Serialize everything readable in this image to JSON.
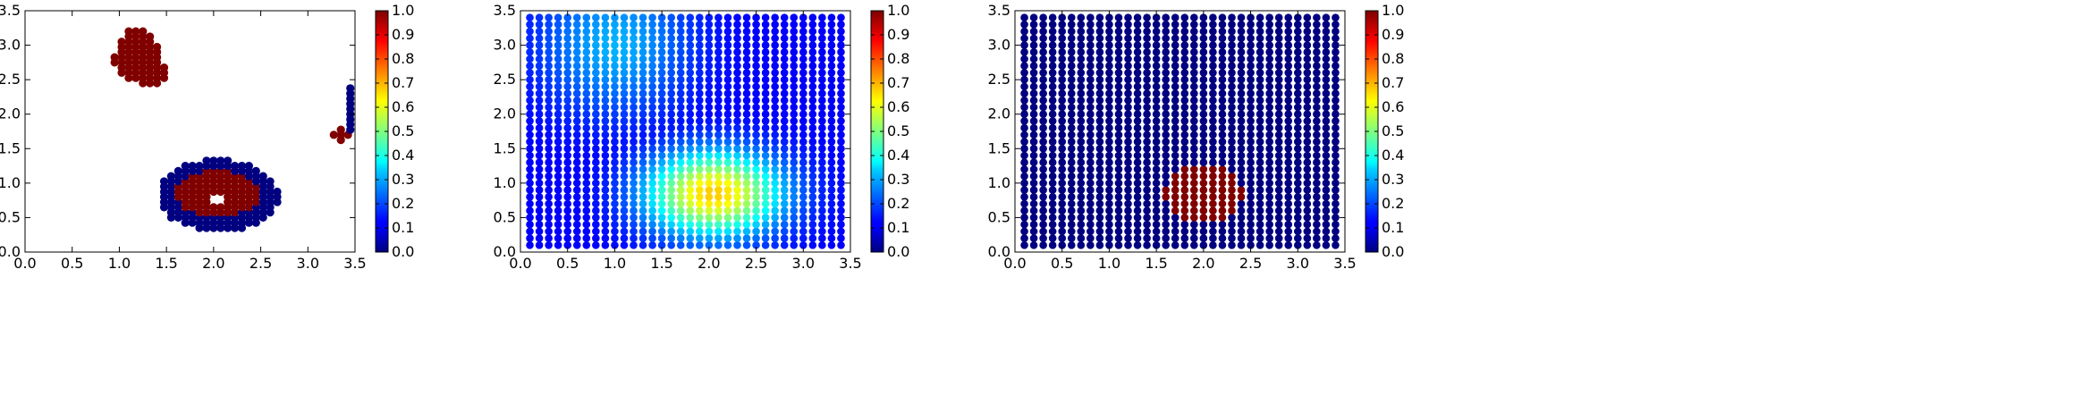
{
  "chart_data": [
    {
      "type": "scatter",
      "title": "",
      "xlabel": "",
      "ylabel": "",
      "xlim": [
        0,
        3.5
      ],
      "ylim": [
        0,
        3.5
      ],
      "xticks": [
        "0.0",
        "0.5",
        "1.0",
        "1.5",
        "2.0",
        "2.5",
        "3.0",
        "3.5"
      ],
      "yticks": [
        "0.0",
        "0.5",
        "1.0",
        "1.5",
        "2.0",
        "2.5",
        "3.0",
        "3.5"
      ],
      "colormap": "jet",
      "colorbar": {
        "range": [
          0,
          1
        ],
        "ticks": [
          "0.0",
          "0.1",
          "0.2",
          "0.3",
          "0.4",
          "0.5",
          "0.6",
          "0.7",
          "0.8",
          "0.9",
          "1.0"
        ]
      },
      "grid": false,
      "field": "clusters",
      "regions": [
        {
          "name": "upper-left blob",
          "value": 1.0,
          "center": [
            1.2,
            2.85
          ]
        },
        {
          "name": "right strip",
          "value": 0.0,
          "center": [
            3.45,
            2.05
          ]
        },
        {
          "name": "right small blob",
          "value": 1.0,
          "center": [
            3.35,
            1.7
          ]
        },
        {
          "name": "lower ring outer",
          "value": 0.0,
          "center": [
            2.05,
            0.82
          ]
        },
        {
          "name": "lower ring inner",
          "value": 1.0,
          "center": [
            2.05,
            0.85
          ]
        }
      ]
    },
    {
      "type": "scatter",
      "title": "",
      "xlabel": "",
      "ylabel": "",
      "xlim": [
        0,
        3.5
      ],
      "ylim": [
        0,
        3.5
      ],
      "xticks": [
        "0.0",
        "0.5",
        "1.0",
        "1.5",
        "2.0",
        "2.5",
        "3.0",
        "3.5"
      ],
      "yticks": [
        "0.0",
        "0.5",
        "1.0",
        "1.5",
        "2.0",
        "2.5",
        "3.0",
        "3.5"
      ],
      "colormap": "jet",
      "colorbar": {
        "range": [
          0,
          1
        ],
        "ticks": [
          "0.0",
          "0.1",
          "0.2",
          "0.3",
          "0.4",
          "0.5",
          "0.6",
          "0.7",
          "0.8",
          "0.9",
          "1.0"
        ]
      },
      "grid": false,
      "field": "smooth",
      "points": {
        "x_start": 0.1,
        "x_end": 3.4,
        "y_start": 0.1,
        "y_end": 3.4,
        "step": 0.1
      },
      "peaks": [
        {
          "center": [
            2.05,
            0.85
          ],
          "value": 0.68
        },
        {
          "center": [
            1.0,
            3.0
          ],
          "value": 0.22
        }
      ]
    },
    {
      "type": "scatter",
      "title": "",
      "xlabel": "",
      "ylabel": "",
      "xlim": [
        0,
        3.5
      ],
      "ylim": [
        0,
        3.5
      ],
      "xticks": [
        "0.0",
        "0.5",
        "1.0",
        "1.5",
        "2.0",
        "2.5",
        "3.0",
        "3.5"
      ],
      "yticks": [
        "0.0",
        "0.5",
        "1.0",
        "1.5",
        "2.0",
        "2.5",
        "3.0",
        "3.5"
      ],
      "colormap": "jet",
      "colorbar": {
        "range": [
          0,
          1
        ],
        "ticks": [
          "0.0",
          "0.1",
          "0.2",
          "0.3",
          "0.4",
          "0.5",
          "0.6",
          "0.7",
          "0.8",
          "0.9",
          "1.0"
        ]
      },
      "grid": false,
      "field": "disk",
      "points": {
        "x_start": 0.1,
        "x_end": 3.4,
        "y_start": 0.1,
        "y_end": 3.4,
        "step": 0.1
      },
      "disk": {
        "center": [
          2.0,
          0.85
        ],
        "radius": 0.42,
        "value": 1.0
      }
    }
  ]
}
